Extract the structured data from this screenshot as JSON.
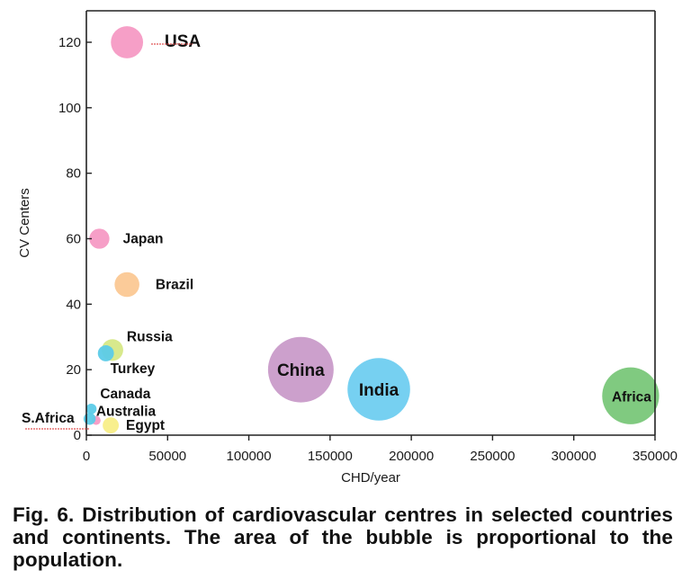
{
  "chart_data": {
    "type": "bubble",
    "xlabel": "CHD/year",
    "ylabel": "CV Centers",
    "xlim": [
      0,
      350000
    ],
    "ylim": [
      0,
      130
    ],
    "x_ticks": [
      0,
      50000,
      100000,
      150000,
      200000,
      250000,
      300000,
      350000
    ],
    "y_ticks": [
      0,
      20,
      40,
      60,
      80,
      100,
      120
    ],
    "grid": false,
    "legend": "none",
    "points": [
      {
        "label": "USA",
        "x": 25000,
        "y": 120,
        "size": 320,
        "color": "#f59ac4"
      },
      {
        "label": "Japan",
        "x": 8000,
        "y": 60,
        "size": 125,
        "color": "#f59ac4"
      },
      {
        "label": "Brazil",
        "x": 25000,
        "y": 46,
        "size": 190,
        "color": "#fbc893"
      },
      {
        "label": "Russia",
        "x": 16000,
        "y": 26,
        "size": 145,
        "color": "#d6e886"
      },
      {
        "label": "Turkey",
        "x": 12000,
        "y": 25,
        "size": 80,
        "color": "#5ccbe8"
      },
      {
        "label": "China",
        "x": 132000,
        "y": 20,
        "size": 1330,
        "color": "#c99bc9"
      },
      {
        "label": "India",
        "x": 180000,
        "y": 14,
        "size": 1210,
        "color": "#6fcdf0"
      },
      {
        "label": "Africa",
        "x": 335000,
        "y": 12,
        "size": 1000,
        "color": "#79c779"
      },
      {
        "label": "Canada",
        "x": 3000,
        "y": 8,
        "size": 35,
        "color": "#5ccbe8"
      },
      {
        "label": "Australia",
        "x": 6000,
        "y": 4.5,
        "size": 25,
        "color": "#f59ac4"
      },
      {
        "label": "Egypt",
        "x": 15000,
        "y": 3,
        "size": 80,
        "color": "#f8ee88"
      },
      {
        "label": "S.Africa",
        "x": 2000,
        "y": 5,
        "size": 45,
        "color": "#5ccbe8"
      }
    ]
  },
  "caption": "Fig. 6. Distribution of cardiovascular centres in selected countries and continents. The area of the bubble is proportional to the population."
}
